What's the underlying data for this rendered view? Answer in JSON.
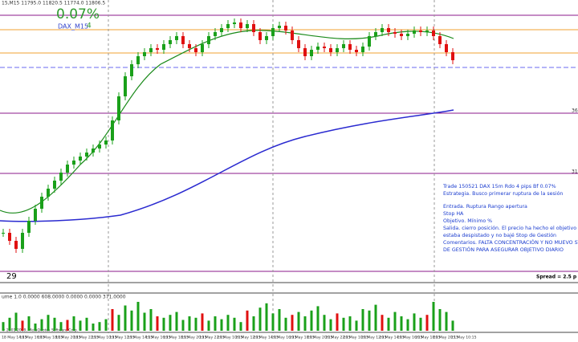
{
  "header": {
    "symbol": "15,M15 11795.0 11820.5 11774.0 11806.5",
    "result": "0.07%",
    "indicator": "DAX_M15",
    "pips": "4"
  },
  "price": {
    "ylim": [
      0,
      340
    ],
    "closes": [
      50,
      40,
      30,
      50,
      65,
      80,
      95,
      105,
      115,
      125,
      135,
      140,
      145,
      150,
      155,
      160,
      165,
      190,
      220,
      245,
      260,
      270,
      275,
      280,
      278,
      285,
      290,
      295,
      285,
      280,
      275,
      285,
      295,
      300,
      305,
      310,
      312,
      305,
      310,
      300,
      290,
      295,
      305,
      308,
      302,
      290,
      280,
      270,
      278,
      282,
      280,
      275,
      280,
      285,
      278,
      275,
      282,
      295,
      300,
      305,
      300,
      298,
      295,
      298,
      302,
      300,
      302,
      295,
      285,
      275,
      265
    ]
  },
  "volume": {
    "label": "ume 1.0 0.0000 608.0000 0.0000 0.0000 371.0000",
    "ylim": [
      0,
      50
    ],
    "values": [
      12,
      18,
      25,
      14,
      20,
      10,
      16,
      22,
      18,
      12,
      15,
      20,
      14,
      18,
      10,
      12,
      16,
      30,
      22,
      35,
      28,
      40,
      25,
      30,
      20,
      18,
      22,
      26,
      15,
      20,
      18,
      24,
      14,
      20,
      16,
      22,
      18,
      12,
      28,
      20,
      32,
      38,
      24,
      30,
      18,
      22,
      26,
      20,
      28,
      34,
      22,
      16,
      24,
      18,
      20,
      14,
      30,
      28,
      36,
      22,
      18,
      26,
      20,
      16,
      24,
      18,
      22,
      40,
      30,
      26,
      14
    ]
  },
  "right_labels": [
    "36",
    "31"
  ],
  "cursor_label": "29",
  "spread": "Spread = 2.5 p",
  "copyright": "© 2001-2019, MetaQuotes Software Corp.",
  "notes": [
    "Trade 150521 DAX 15m Rdo 4 pips Bf 0.07%",
    "Estrategia. Busco primerar ruptura de la sesión",
    "Entrada. Ruptura Rango apertura",
    "Stop HA",
    "Objetivo. Mínimo %",
    "Salida. cierro posición. El precio ha hecho el objetivo y",
    "estaba despistado y no bajé Stop de Gestión",
    "Comentarios. FALTA CONCENTRACIÓN Y NO MUEVO STOP",
    "DE GESTIÓN PARA ASEGURAR OBJETIVO DIARIO"
  ],
  "time_labels": [
    "18 May 14:15",
    "18 May 16:15",
    "18 May 18:15",
    "18 May 20:15",
    "18 May 22:15",
    "19 May 10:15",
    "19 May 12:15",
    "19 May 14:15",
    "19 May 16:15",
    "19 May 18:15",
    "19 May 20:15",
    "19 May 22:15",
    "20 May 10:15",
    "20 May 12:15",
    "20 May 14:15",
    "20 May 16:15",
    "20 May 18:15",
    "20 May 20:15",
    "20 May 22:15",
    "20 May 10:15",
    "20 May 12:15",
    "20 May 14:15",
    "20 May 16:15",
    "20 May 18:15",
    "20 May 20:15",
    "21 May 10:15"
  ]
}
